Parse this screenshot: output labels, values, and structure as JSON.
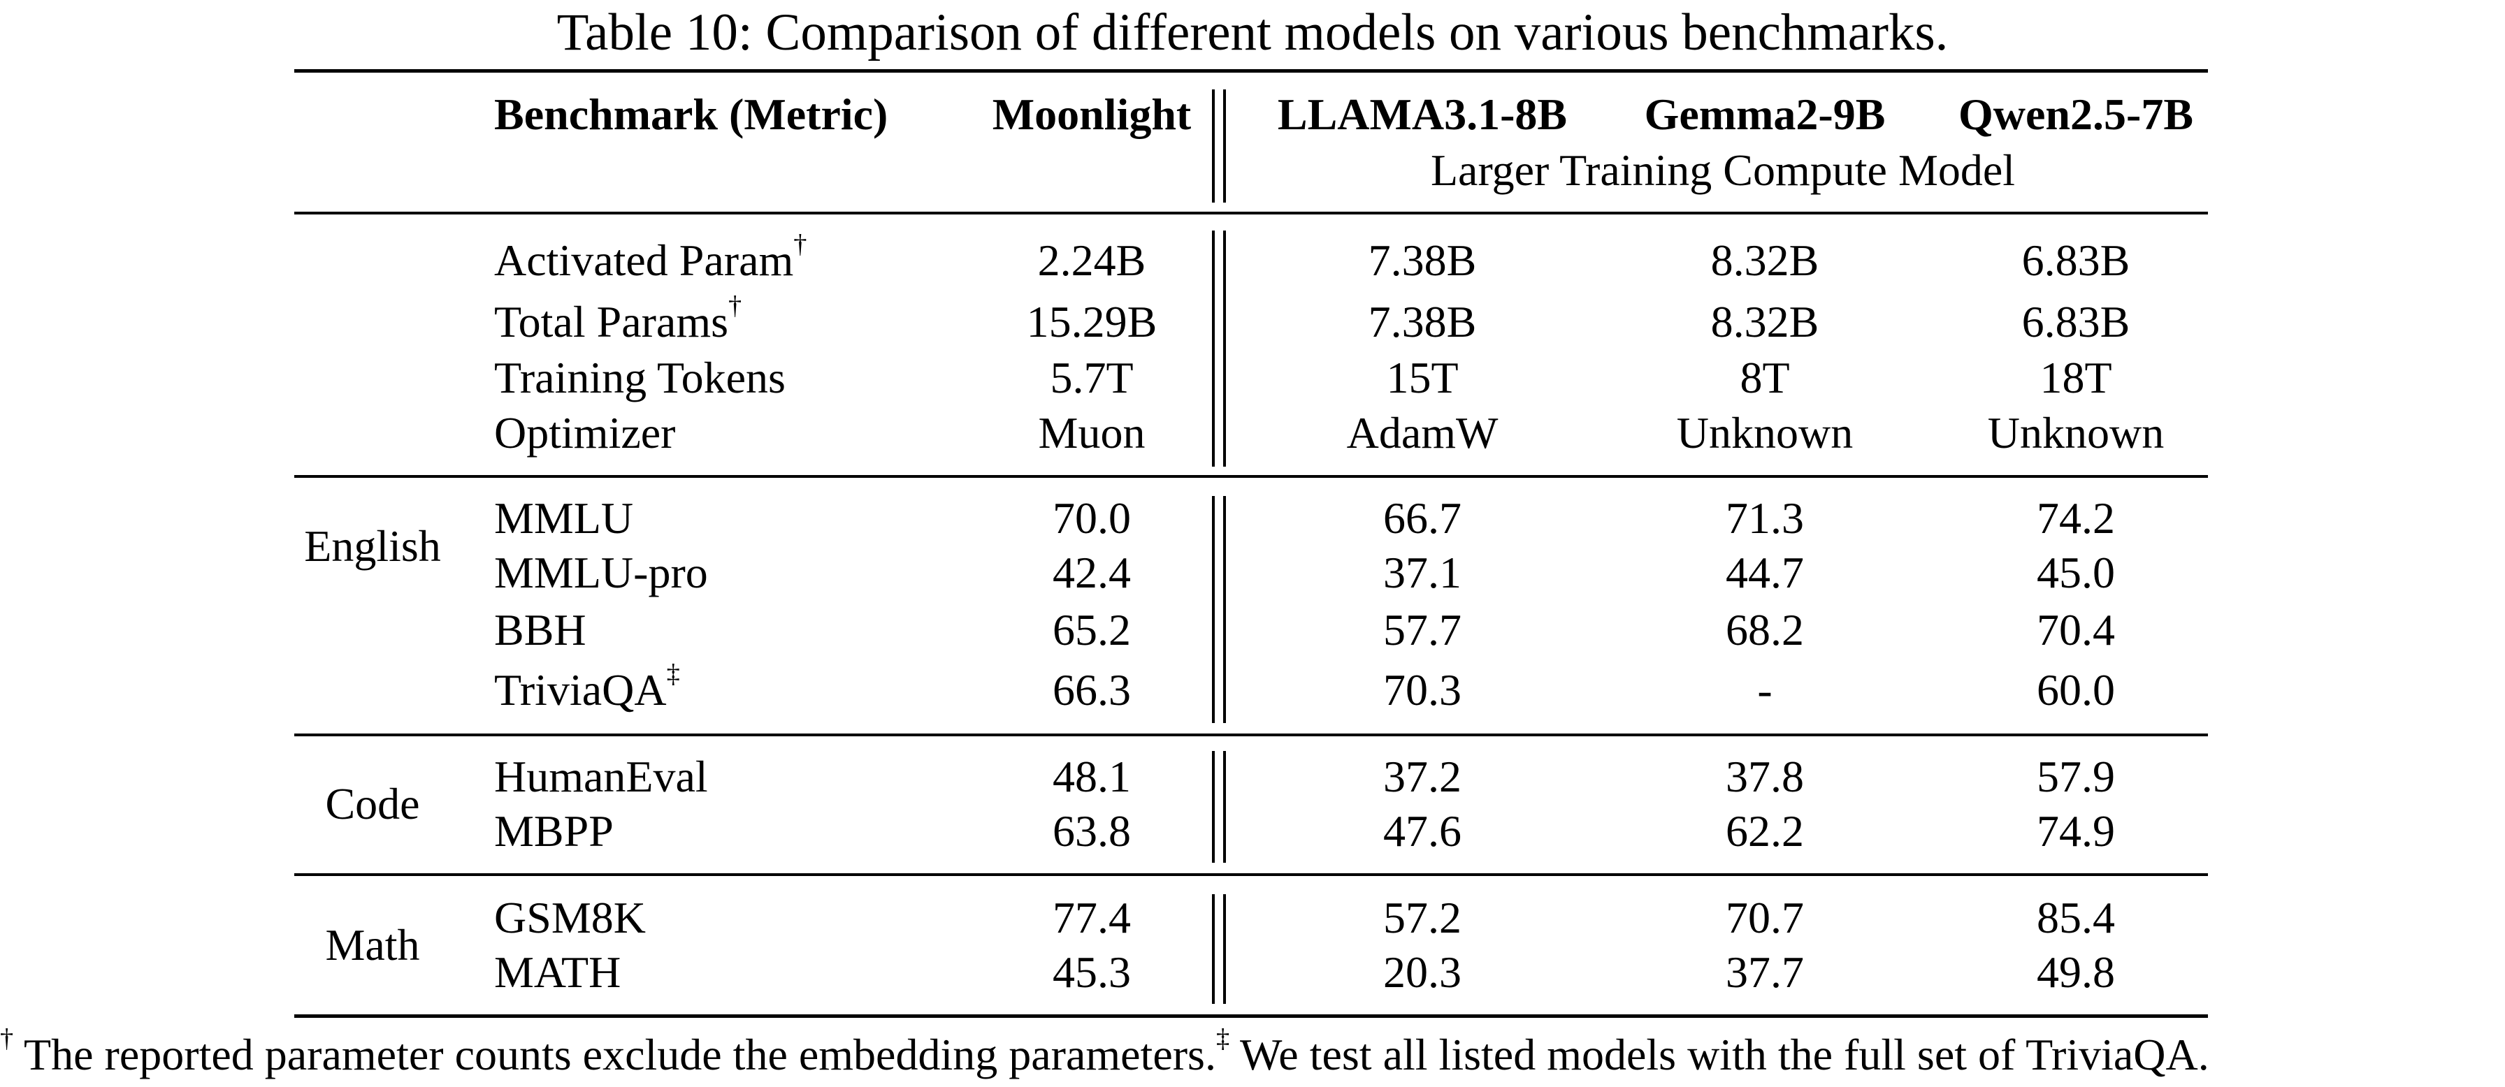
{
  "caption": "Table 10: Comparison of different models on various benchmarks.",
  "header": {
    "benchmark": "Benchmark (Metric)",
    "moonlight": "Moonlight",
    "llama": "LLAMA3.1-8B",
    "gemma": "Gemma2-9B",
    "qwen": "Qwen2.5-7B",
    "group_label": "Larger Training Compute Model"
  },
  "dagger": "†",
  "ddagger": "‡",
  "meta_rows": [
    {
      "name": "Activated Param",
      "mark": "†",
      "moonlight": "2.24B",
      "llama": "7.38B",
      "gemma": "8.32B",
      "qwen": "6.83B"
    },
    {
      "name": "Total Params",
      "mark": "†",
      "moonlight": "15.29B",
      "llama": "7.38B",
      "gemma": "8.32B",
      "qwen": "6.83B"
    },
    {
      "name": "Training Tokens",
      "mark": "",
      "moonlight": "5.7T",
      "llama": "15T",
      "gemma": "8T",
      "qwen": "18T"
    },
    {
      "name": "Optimizer",
      "mark": "",
      "moonlight": "Muon",
      "llama": "AdamW",
      "gemma": "Unknown",
      "qwen": "Unknown"
    }
  ],
  "sections": [
    {
      "label": "English",
      "rows": [
        {
          "name": "MMLU",
          "mark": "",
          "moonlight": "70.0",
          "llama": "66.7",
          "gemma": "71.3",
          "qwen": "74.2"
        },
        {
          "name": "MMLU-pro",
          "mark": "",
          "moonlight": "42.4",
          "llama": "37.1",
          "gemma": "44.7",
          "qwen": "45.0"
        },
        {
          "name": "BBH",
          "mark": "",
          "moonlight": "65.2",
          "llama": "57.7",
          "gemma": "68.2",
          "qwen": "70.4"
        },
        {
          "name": "TriviaQA",
          "mark": "‡",
          "moonlight": "66.3",
          "llama": "70.3",
          "gemma": "-",
          "qwen": "60.0"
        }
      ]
    },
    {
      "label": "Code",
      "rows": [
        {
          "name": "HumanEval",
          "mark": "",
          "moonlight": "48.1",
          "llama": "37.2",
          "gemma": "37.8",
          "qwen": "57.9"
        },
        {
          "name": "MBPP",
          "mark": "",
          "moonlight": "63.8",
          "llama": "47.6",
          "gemma": "62.2",
          "qwen": "74.9"
        }
      ]
    },
    {
      "label": "Math",
      "rows": [
        {
          "name": "GSM8K",
          "mark": "",
          "moonlight": "77.4",
          "llama": "57.2",
          "gemma": "70.7",
          "qwen": "85.4"
        },
        {
          "name": "MATH",
          "mark": "",
          "moonlight": "45.3",
          "llama": "20.3",
          "gemma": "37.7",
          "qwen": "49.8"
        }
      ]
    }
  ],
  "footnote": {
    "dagger_text": " The reported parameter counts exclude the embedding parameters.",
    "ddagger_text": " We test all listed models with the full set of TriviaQA."
  }
}
